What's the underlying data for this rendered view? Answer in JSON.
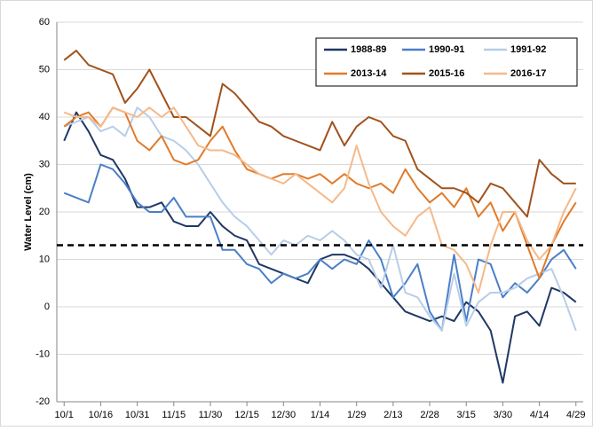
{
  "chart_data": {
    "type": "line",
    "y_label": "Water Level (cm)",
    "x": [
      0,
      5,
      10,
      15,
      20,
      25,
      30,
      35,
      40,
      45,
      50,
      55,
      60,
      65,
      70,
      75,
      80,
      85,
      90,
      95,
      100,
      105,
      110,
      115,
      120,
      125,
      130,
      135,
      140,
      145,
      150,
      155,
      160,
      165,
      170,
      175,
      180,
      185,
      190,
      195,
      200,
      205,
      210
    ],
    "xlim": [
      -3,
      213
    ],
    "xticks": [
      {
        "value": 0,
        "label": "10/1"
      },
      {
        "value": 15,
        "label": "10/16"
      },
      {
        "value": 30,
        "label": "10/31"
      },
      {
        "value": 45,
        "label": "11/15"
      },
      {
        "value": 60,
        "label": "11/30"
      },
      {
        "value": 75,
        "label": "12/15"
      },
      {
        "value": 90,
        "label": "12/30"
      },
      {
        "value": 105,
        "label": "1/14"
      },
      {
        "value": 120,
        "label": "1/29"
      },
      {
        "value": 135,
        "label": "2/13"
      },
      {
        "value": 150,
        "label": "2/28"
      },
      {
        "value": 165,
        "label": "3/15"
      },
      {
        "value": 180,
        "label": "3/30"
      },
      {
        "value": 195,
        "label": "4/14"
      },
      {
        "value": 210,
        "label": "4/29"
      }
    ],
    "ylim": [
      -20,
      60
    ],
    "yticks": [
      -20,
      -10,
      0,
      10,
      20,
      30,
      40,
      50,
      60
    ],
    "grid": true,
    "reference_line": 13,
    "series": [
      {
        "name": "1988-89",
        "color": "#1f3864",
        "values": [
          35,
          41,
          37,
          32,
          31,
          27,
          21,
          21,
          22,
          18,
          17,
          17,
          20,
          17,
          15,
          14,
          9,
          8,
          7,
          6,
          5,
          10,
          11,
          11,
          10,
          8,
          5,
          2,
          -1,
          -2,
          -3,
          -2,
          -3,
          1,
          -1,
          -5,
          -16,
          -2,
          -1,
          -4,
          4,
          3,
          1
        ]
      },
      {
        "name": "1990-91",
        "color": "#4a7fc9",
        "values": [
          24,
          23,
          22,
          30,
          29,
          26,
          22,
          20,
          20,
          23,
          19,
          19,
          19,
          12,
          12,
          9,
          8,
          5,
          7,
          6,
          7,
          10,
          8,
          10,
          9,
          14,
          10,
          2,
          5,
          9,
          -1,
          -5,
          11,
          -3,
          10,
          9,
          2,
          5,
          3,
          6,
          10,
          12,
          8
        ]
      },
      {
        "name": "1991-92",
        "color": "#b8cde8",
        "values": [
          38,
          39,
          40,
          37,
          38,
          36,
          42,
          40,
          36,
          35,
          33,
          30,
          26,
          22,
          19,
          17,
          14,
          11,
          14,
          13,
          15,
          14,
          16,
          14,
          11,
          10,
          4,
          13,
          3,
          2,
          -2,
          -5,
          7,
          -4,
          1,
          3,
          3,
          4,
          6,
          7,
          8,
          2,
          -5
        ]
      },
      {
        "name": "2013-14",
        "color": "#e07b2a",
        "values": [
          38,
          40,
          41,
          38,
          42,
          41,
          35,
          33,
          36,
          31,
          30,
          31,
          35,
          38,
          33,
          29,
          28,
          27,
          28,
          28,
          27,
          28,
          26,
          28,
          26,
          25,
          26,
          24,
          29,
          25,
          22,
          24,
          21,
          25,
          19,
          22,
          16,
          20,
          13,
          6,
          13,
          18,
          22
        ]
      },
      {
        "name": "2015-16",
        "color": "#a0521c",
        "values": [
          52,
          54,
          51,
          50,
          49,
          43,
          46,
          50,
          45,
          40,
          40,
          38,
          36,
          47,
          45,
          42,
          39,
          38,
          36,
          35,
          34,
          33,
          39,
          34,
          38,
          40,
          39,
          36,
          35,
          29,
          27,
          25,
          25,
          24,
          22,
          26,
          25,
          22,
          19,
          31,
          28,
          26,
          26
        ]
      },
      {
        "name": "2016-17",
        "color": "#f5b98a",
        "values": [
          41,
          40,
          40,
          38,
          42,
          41,
          40,
          42,
          40,
          42,
          38,
          34,
          33,
          33,
          32,
          30,
          28,
          27,
          26,
          28,
          26,
          24,
          22,
          25,
          34,
          26,
          20,
          17,
          15,
          19,
          21,
          13,
          12,
          9,
          3,
          13,
          20,
          20,
          14,
          10,
          13,
          20,
          25
        ]
      }
    ]
  }
}
